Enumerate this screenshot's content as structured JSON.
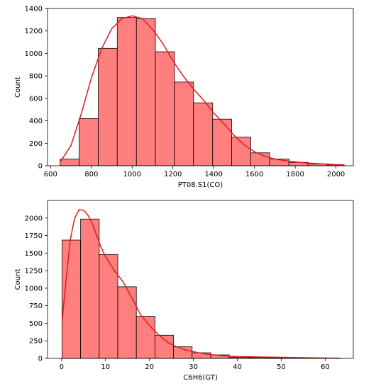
{
  "chart_data": [
    {
      "type": "histogram",
      "xlabel": "PT08.S1(CO)",
      "ylabel": "Count",
      "xlim": [
        585,
        2085
      ],
      "ylim": [
        0,
        1400
      ],
      "xticks": [
        600,
        800,
        1000,
        1200,
        1400,
        1600,
        1800,
        2000
      ],
      "yticks": [
        0,
        200,
        400,
        600,
        800,
        1000,
        1200,
        1400
      ],
      "bar_color": "#ff7f7f",
      "edge_color": "#000000",
      "kde_color": "#e41a1c",
      "bins": [
        {
          "start": 647,
          "end": 740,
          "count": 60
        },
        {
          "start": 740,
          "end": 834,
          "count": 420
        },
        {
          "start": 834,
          "end": 927,
          "count": 1045
        },
        {
          "start": 927,
          "end": 1021,
          "count": 1320
        },
        {
          "start": 1021,
          "end": 1114,
          "count": 1310
        },
        {
          "start": 1114,
          "end": 1208,
          "count": 1015
        },
        {
          "start": 1208,
          "end": 1301,
          "count": 745
        },
        {
          "start": 1301,
          "end": 1395,
          "count": 560
        },
        {
          "start": 1395,
          "end": 1488,
          "count": 415
        },
        {
          "start": 1488,
          "end": 1582,
          "count": 255
        },
        {
          "start": 1582,
          "end": 1675,
          "count": 115
        },
        {
          "start": 1675,
          "end": 1769,
          "count": 60
        },
        {
          "start": 1769,
          "end": 1862,
          "count": 30
        },
        {
          "start": 1862,
          "end": 1956,
          "count": 15
        },
        {
          "start": 1956,
          "end": 2040,
          "count": 8
        }
      ],
      "kde": {
        "x": [
          650,
          700,
          750,
          800,
          850,
          900,
          950,
          1000,
          1050,
          1100,
          1150,
          1200,
          1250,
          1300,
          1350,
          1400,
          1450,
          1500,
          1550,
          1600,
          1650,
          1700,
          1750,
          1800,
          1850,
          1900,
          1950,
          2000,
          2040
        ],
        "y": [
          40,
          180,
          460,
          780,
          1040,
          1220,
          1310,
          1335,
          1310,
          1215,
          1090,
          935,
          800,
          685,
          585,
          470,
          375,
          270,
          185,
          125,
          85,
          60,
          45,
          35,
          25,
          20,
          15,
          10,
          8
        ]
      }
    },
    {
      "type": "histogram",
      "xlabel": "C6H6(GT)",
      "ylabel": "Count",
      "xlim": [
        -3.2,
        66.4
      ],
      "ylim": [
        0,
        2250
      ],
      "xticks": [
        0,
        10,
        20,
        30,
        40,
        50,
        60
      ],
      "yticks": [
        0,
        250,
        500,
        750,
        1000,
        1250,
        1500,
        1750,
        2000
      ],
      "bar_color": "#ff7f7f",
      "edge_color": "#000000",
      "kde_color": "#e41a1c",
      "bins": [
        {
          "start": 0.1,
          "end": 4.33,
          "count": 1685
        },
        {
          "start": 4.33,
          "end": 8.56,
          "count": 1985
        },
        {
          "start": 8.56,
          "end": 12.79,
          "count": 1480
        },
        {
          "start": 12.79,
          "end": 17.02,
          "count": 1020
        },
        {
          "start": 17.02,
          "end": 21.25,
          "count": 600
        },
        {
          "start": 21.25,
          "end": 25.48,
          "count": 330
        },
        {
          "start": 25.48,
          "end": 29.71,
          "count": 165
        },
        {
          "start": 29.71,
          "end": 33.94,
          "count": 80
        },
        {
          "start": 33.94,
          "end": 38.17,
          "count": 50
        },
        {
          "start": 38.17,
          "end": 42.4,
          "count": 15
        },
        {
          "start": 42.4,
          "end": 46.63,
          "count": 12
        },
        {
          "start": 46.63,
          "end": 50.86,
          "count": 6
        },
        {
          "start": 50.86,
          "end": 55.09,
          "count": 4
        },
        {
          "start": 55.09,
          "end": 59.32,
          "count": 2
        },
        {
          "start": 59.32,
          "end": 63.55,
          "count": 1
        }
      ],
      "kde": {
        "x": [
          0.1,
          1,
          2,
          3,
          4,
          5,
          6,
          7,
          8,
          9,
          10,
          12,
          14,
          16,
          18,
          20,
          22,
          24,
          26,
          28,
          30,
          33,
          36,
          40,
          45,
          50,
          55,
          60,
          63.5
        ],
        "y": [
          520,
          1100,
          1700,
          2000,
          2120,
          2110,
          2040,
          1920,
          1750,
          1580,
          1450,
          1250,
          1090,
          860,
          620,
          470,
          340,
          235,
          170,
          125,
          95,
          60,
          40,
          25,
          20,
          15,
          10,
          5,
          2
        ]
      }
    }
  ]
}
